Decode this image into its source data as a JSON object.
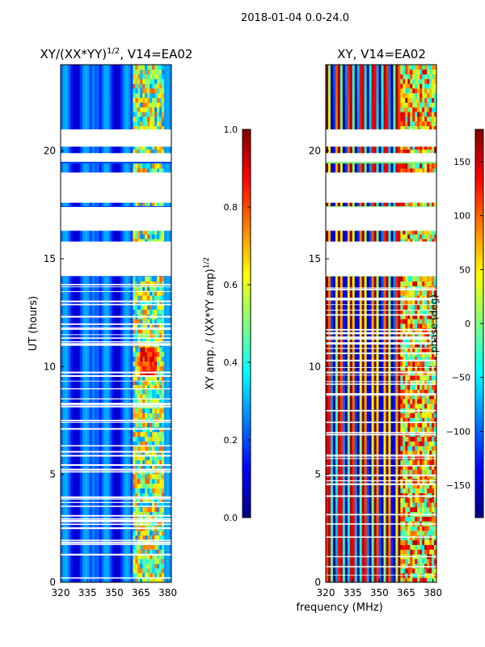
{
  "suptitle": "2018-01-04 0.0-24.0",
  "shared_xlabel": "frequency (MHz)",
  "colors": {
    "jet": [
      "#00007f",
      "#0000ff",
      "#007fff",
      "#00ffff",
      "#7fff7f",
      "#ffff00",
      "#ff7f00",
      "#ff0000",
      "#7f0000"
    ],
    "gap": "#ffffff"
  },
  "chart_data": [
    {
      "type": "heatmap",
      "title_prefix": "XY/(XX*YY)",
      "title_exp": "1/2",
      "title_suffix": ", V14=EA02",
      "xlabel": "",
      "ylabel": "UT (hours)",
      "xlim": [
        320,
        382
      ],
      "ylim": [
        0,
        24
      ],
      "xticks": [
        "320",
        "335",
        "350",
        "365",
        "380"
      ],
      "xtick_values": [
        320,
        335,
        350,
        365,
        380
      ],
      "yticks": [
        "0",
        "5",
        "10",
        "15",
        "20"
      ],
      "ytick_values": [
        0,
        5,
        10,
        15,
        20
      ],
      "quantity": "amplitude",
      "colorbar": {
        "label_prefix": "XY amp. / (XX*YY amp)",
        "label_exp": "1/2",
        "range": [
          0.0,
          1.0
        ],
        "ticks": [
          "0.0",
          "0.2",
          "0.4",
          "0.6",
          "0.8",
          "1.0"
        ],
        "tick_values": [
          0.0,
          0.2,
          0.4,
          0.6,
          0.8,
          1.0
        ]
      },
      "data_gaps_hours": [
        [
          14.2,
          15.8
        ],
        [
          16.3,
          17.4
        ],
        [
          17.6,
          19.0
        ],
        [
          19.5,
          19.9
        ],
        [
          20.2,
          21.0
        ]
      ]
    },
    {
      "type": "heatmap",
      "title_prefix": "XY, V14=EA02",
      "title_exp": "",
      "title_suffix": "",
      "xlabel": "frequency (MHz)",
      "ylabel": "",
      "xlim": [
        320,
        382
      ],
      "ylim": [
        0,
        24
      ],
      "xticks": [
        "320",
        "335",
        "350",
        "365",
        "380"
      ],
      "xtick_values": [
        320,
        335,
        350,
        365,
        380
      ],
      "yticks": [
        "0",
        "5",
        "10",
        "15",
        "20"
      ],
      "ytick_values": [
        0,
        5,
        10,
        15,
        20
      ],
      "quantity": "phase",
      "colorbar": {
        "label_prefix": "phase (deg)",
        "label_exp": "",
        "range": [
          -180,
          180
        ],
        "ticks": [
          "−150",
          "−100",
          "−50",
          "0",
          "50",
          "100",
          "150"
        ],
        "tick_values": [
          -150,
          -100,
          -50,
          0,
          50,
          100,
          150
        ]
      },
      "data_gaps_hours": [
        [
          14.2,
          15.8
        ],
        [
          16.3,
          17.4
        ],
        [
          17.6,
          19.0
        ],
        [
          19.5,
          19.9
        ],
        [
          20.2,
          21.0
        ]
      ]
    }
  ]
}
